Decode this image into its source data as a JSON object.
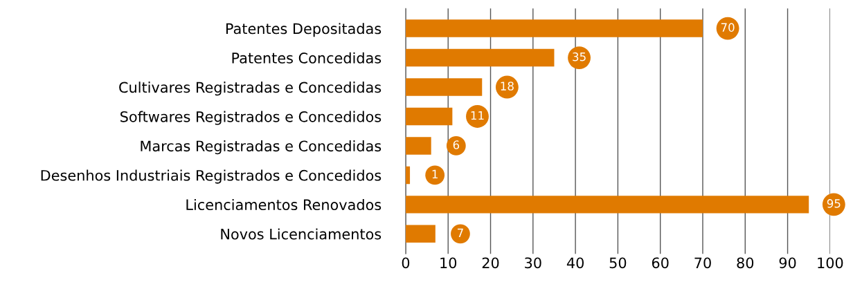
{
  "chart_data": {
    "type": "bar",
    "orientation": "horizontal",
    "categories": [
      "Patentes Depositadas",
      "Patentes Concedidas",
      "Cultivares Registradas e Concedidas",
      "Softwares Registrados e Concedidos",
      "Marcas Registradas e Concedidas",
      "Desenhos Industriais Registrados e Concedidos",
      "Licenciamentos Renovados",
      "Novos Licenciamentos"
    ],
    "values": [
      70,
      35,
      18,
      11,
      6,
      1,
      95,
      7
    ],
    "color": "#e07a00",
    "xlim": [
      0,
      100
    ],
    "xticks": [
      0,
      10,
      20,
      30,
      40,
      50,
      60,
      70,
      80,
      90,
      100
    ],
    "grid": "x",
    "data_labels": true
  }
}
